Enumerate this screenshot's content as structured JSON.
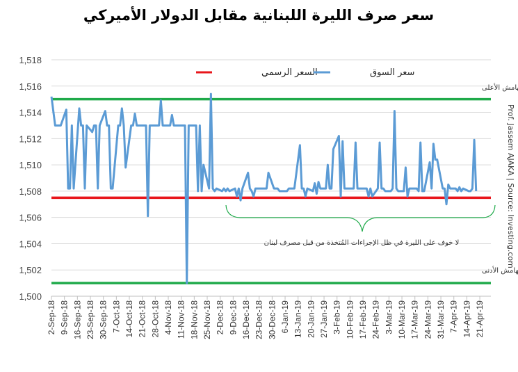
{
  "chart_data": {
    "type": "line",
    "title": "سعر صرف الليرة اللبنانية مقابل الدولار الأميركي",
    "xlabel": "",
    "ylabel": "",
    "ylim": [
      1500,
      1518
    ],
    "yticks": [
      1500,
      1502,
      1504,
      1506,
      1508,
      1510,
      1512,
      1514,
      1516,
      1518
    ],
    "ytick_labels": [
      "1,500",
      "1,502",
      "1,504",
      "1,506",
      "1,508",
      "1,510",
      "1,512",
      "1,514",
      "1,516",
      "1,518"
    ],
    "xtick_labels": [
      "2-Sep-18",
      "9-Sep-18",
      "16-Sep-18",
      "23-Sep-18",
      "30-Sep-18",
      "7-Oct-18",
      "14-Oct-18",
      "21-Oct-18",
      "28-Oct-18",
      "4-Nov-18",
      "11-Nov-18",
      "18-Nov-18",
      "25-Nov-18",
      "2-Dec-18",
      "9-Dec-18",
      "16-Dec-18",
      "23-Dec-18",
      "30-Dec-18",
      "6-Jan-19",
      "13-Jan-19",
      "20-Jan-19",
      "27-Jan-19",
      "3-Feb-19",
      "10-Feb-19",
      "17-Feb-19",
      "24-Feb-19",
      "3-Mar-19",
      "10-Mar-19",
      "17-Mar-19",
      "24-Mar-19",
      "31-Mar-19",
      "7-Apr-19",
      "14-Apr-19",
      "21-Apr-19"
    ],
    "x_unit": "business days from 3-Sep-18 (Mon-Fri)",
    "grid": true,
    "legend_position": "top-center",
    "series": [
      {
        "name": "السعر الرسمي",
        "color": "#e8161b",
        "constant": 1507.5
      },
      {
        "name": "سعر السوق",
        "color": "#5b9bd5",
        "values": [
          1515.2,
          1513,
          1513,
          1513,
          1513,
          1514.2,
          1508.2,
          1508.2,
          1513,
          1508.2,
          1514.3,
          1513,
          1513,
          1508.2,
          1513,
          1512.5,
          1513,
          1513,
          1508.2,
          1513,
          1514.1,
          1513,
          1513,
          1508.2,
          1508.2,
          1513,
          1513,
          1514.3,
          1513,
          1509.8,
          1513,
          1513,
          1513.9,
          1513,
          1513,
          1513,
          1513,
          1506.1,
          1513,
          1513,
          1513,
          1513,
          1514.9,
          1513,
          1513,
          1513,
          1513.8,
          1513,
          1513,
          1513,
          1513,
          1513,
          1501,
          1513,
          1513,
          1513,
          1508,
          1513,
          1508,
          1510,
          1508.2,
          1515.4,
          1508.2,
          1508,
          1508.2,
          1508,
          1508.2,
          1508,
          1508.2,
          1508,
          1508.2,
          1507.6,
          1508.2,
          1507.3,
          1508.2,
          1509.4,
          1508.2,
          1508,
          1507.6,
          1508.2,
          1508.2,
          1508.2,
          1508.2,
          1508.2,
          1509.4,
          1508.2,
          1508.2,
          1508.2,
          1508,
          1508,
          1508,
          1508.2,
          1508.2,
          1508.2,
          1508.2,
          1511.5,
          1508.2,
          1508.2,
          1507.6,
          1508.2,
          1508,
          1508.6,
          1507.8,
          1508.7,
          1508.2,
          1508.2,
          1510,
          1508.2,
          1508.2,
          1511.2,
          1512.2,
          1507.6,
          1511.8,
          1508.2,
          1508.2,
          1508.2,
          1508.2,
          1511.7,
          1508.2,
          1508.2,
          1508.2,
          1508.2,
          1507.6,
          1508.2,
          1507.6,
          1508.2,
          1511.7,
          1508.2,
          1508.2,
          1508,
          1508,
          1508.2,
          1514.1,
          1508.2,
          1508,
          1508,
          1509.8,
          1507.6,
          1508.2,
          1508.2,
          1508.2,
          1508,
          1511.7,
          1508,
          1508,
          1510.2,
          1508.2,
          1511.6,
          1510.4,
          1510.4,
          1508.2,
          1508.2,
          1507,
          1508.5,
          1508.2,
          1508.2,
          1508,
          1508.3,
          1508,
          1508.2,
          1508,
          1508,
          1508.2,
          1511.9,
          1508
        ]
      },
      {
        "name": "الهامش الأعلى",
        "color": "#1faa4a",
        "constant": 1515
      },
      {
        "name": "الهامش الأدنى",
        "color": "#1faa4a",
        "constant": 1501
      }
    ],
    "annotations": {
      "upper_band": "الهامش الأعلى",
      "lower_band": "الهامش الأدنى",
      "brace_note": "لا خوف على الليرة في ظل الإجراءات المُتخذة من قبل مصرف لبنان"
    },
    "credit": "Prof. Jassem AJAKA | Source: Investing.com"
  }
}
